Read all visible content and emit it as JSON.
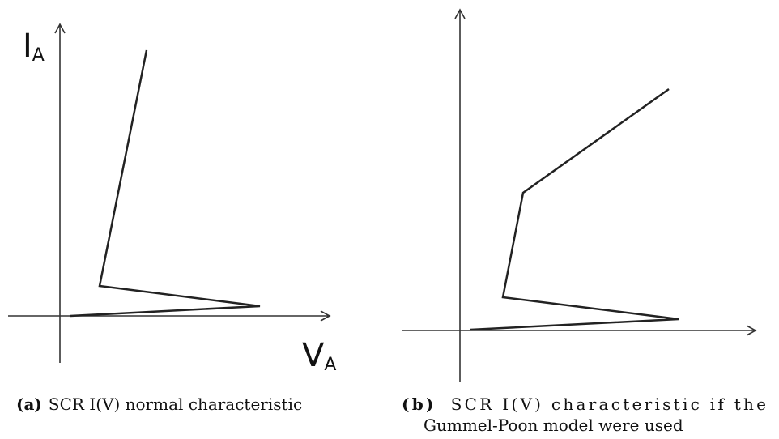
{
  "panel_a": {
    "y_axis_label": {
      "main": "I",
      "sub": "A"
    },
    "x_axis_label": {
      "main": "V",
      "sub": "A"
    },
    "caption": {
      "tag": "(a)",
      "text": "SCR I(V) normal characteristic"
    }
  },
  "panel_b": {
    "caption": {
      "tag": "(b)",
      "line1": "SCR I(V) characteristic if the",
      "line2": "Gummel-Poon model were used"
    }
  },
  "colors": {
    "curve": "#222222",
    "axis": "#333333",
    "text": "#111111"
  }
}
